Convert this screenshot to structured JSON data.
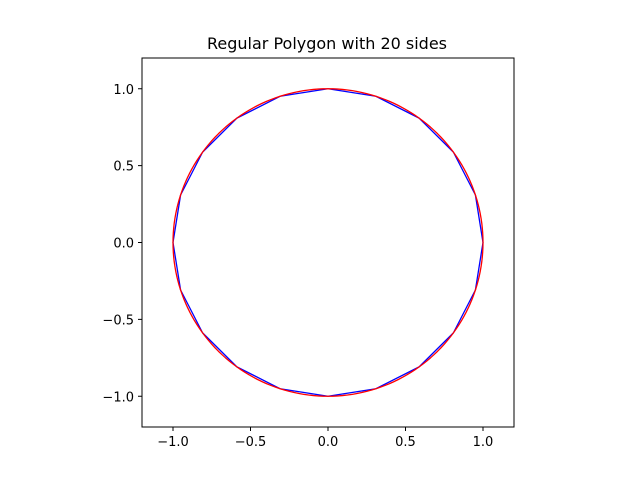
{
  "chart_data": {
    "type": "line",
    "title": "Regular Polygon with 20 sides",
    "xlabel": "",
    "ylabel": "",
    "xlim": [
      -1.2,
      1.2
    ],
    "ylim": [
      -1.2,
      1.2
    ],
    "aspect": "equal",
    "grid": false,
    "legend": "none",
    "x_ticks": [
      -1.0,
      -0.5,
      0.0,
      0.5,
      1.0
    ],
    "x_tick_labels": [
      "−1.0",
      "−0.5",
      "0.0",
      "0.5",
      "1.0"
    ],
    "y_ticks": [
      -1.0,
      -0.5,
      0.0,
      0.5,
      1.0
    ],
    "y_tick_labels": [
      "−1.0",
      "−0.5",
      "0.0",
      "0.5",
      "1.0"
    ],
    "series": [
      {
        "kind": "polygon",
        "sides": 20,
        "radius": 1.0,
        "center": [
          0,
          0
        ],
        "color": "#0000ff"
      },
      {
        "kind": "circle",
        "radius": 1.0,
        "center": [
          0,
          0
        ],
        "color": "#ff0000"
      }
    ]
  }
}
